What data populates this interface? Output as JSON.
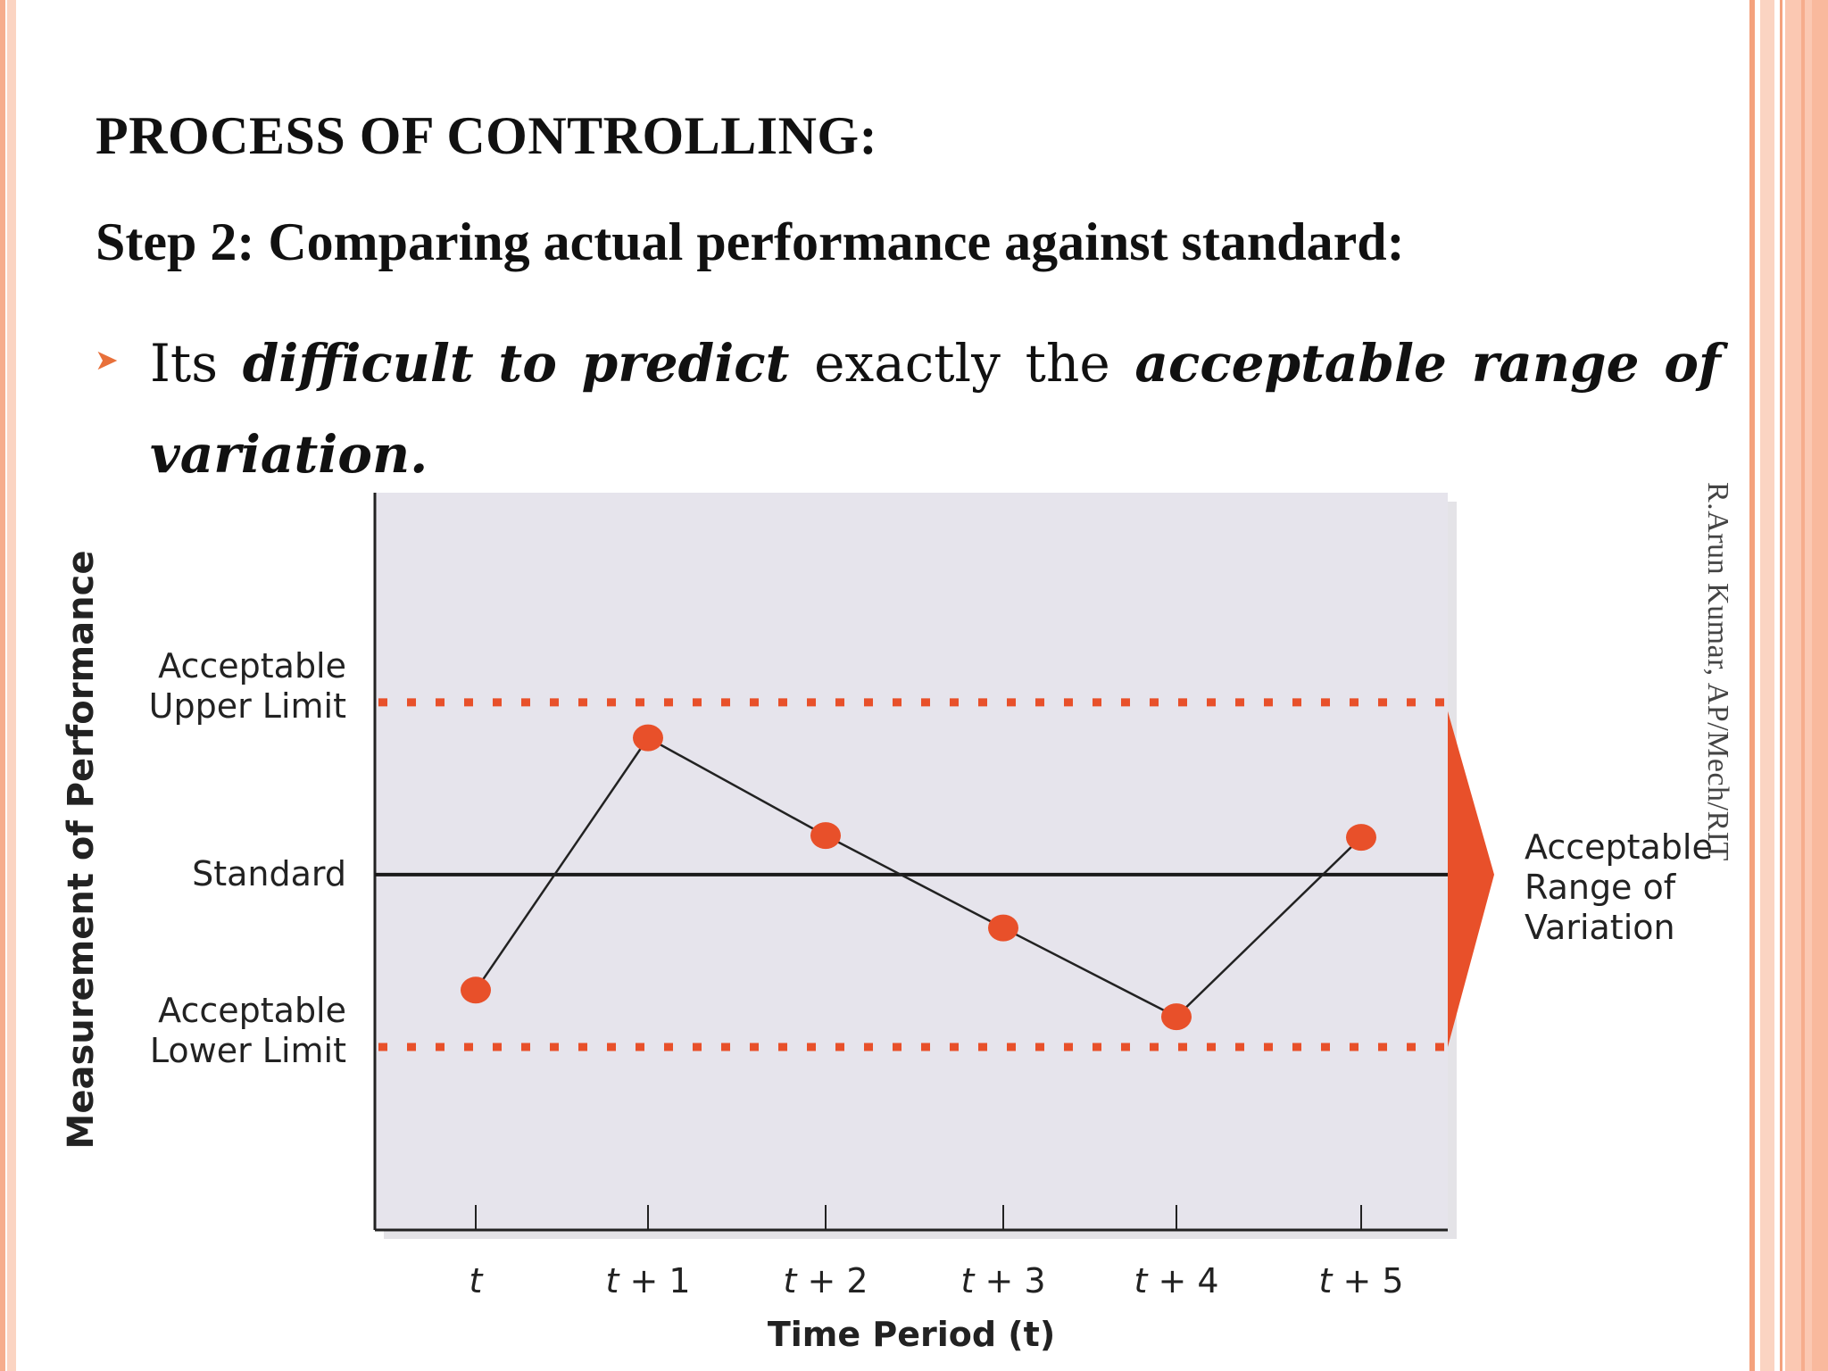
{
  "slide": {
    "title": "PROCESS OF CONTROLLING:",
    "subtitle": "Step 2: Comparing actual performance against standard:",
    "bullet": {
      "w1": "Its",
      "w2": "difficult",
      "w3": "to",
      "w4": "predict",
      "w5": "exactly",
      "w6": "the",
      "w7": "acceptable",
      "w8": "range",
      "w9": "of",
      "w10": "variation."
    },
    "watermark": "R.Arun Kumar, AP/Mech/RIT",
    "colors": {
      "accent": "#e8502a",
      "stripe_dark": "#f4a27e",
      "stripe_light": "#fbd4c2",
      "chart_bg": "#e6e4ec"
    }
  },
  "chart_data": {
    "type": "line",
    "categories": [
      "t",
      "t + 1",
      "t + 2",
      "t + 3",
      "t + 4",
      "t + 5"
    ],
    "values": [
      -0.65,
      0.77,
      0.22,
      -0.3,
      -0.8,
      0.21
    ],
    "xlabel": "Time Period (t)",
    "ylabel": "Measurement of Performance",
    "ylim": [
      -2.0,
      2.15
    ],
    "reference_lines": [
      {
        "label": "Acceptable Upper Limit",
        "value": 0.97,
        "style": "dotted"
      },
      {
        "label": "Standard",
        "value": 0,
        "style": "solid"
      },
      {
        "label": "Acceptable Lower Limit",
        "value": -0.97,
        "style": "dotted"
      }
    ],
    "range_annotation": "Acceptable Range of Variation",
    "grid": false,
    "legend": "none"
  }
}
